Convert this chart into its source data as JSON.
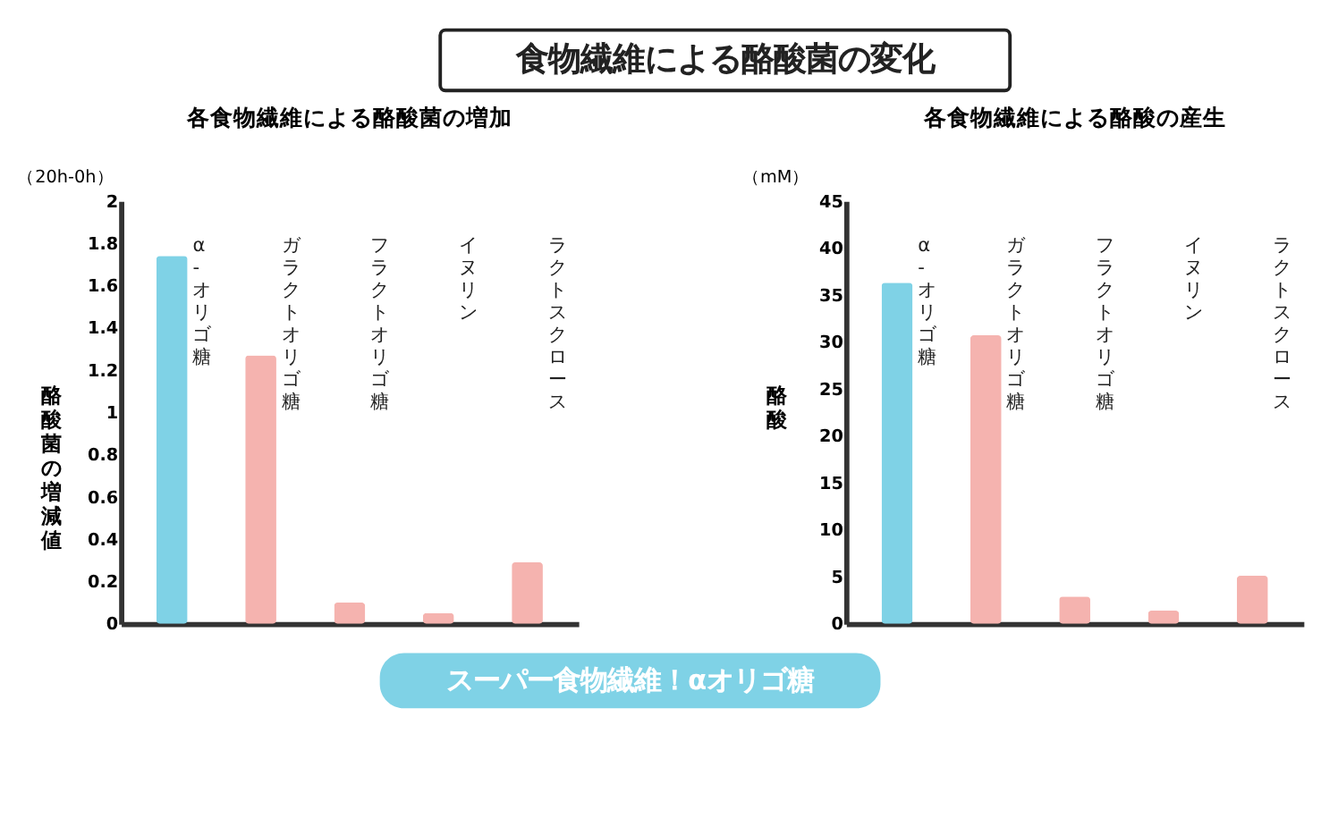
{
  "chart_data": [
    {
      "type": "other",
      "title": "食物繊維による酪酸菌の変化",
      "annotations": [
        "スーパー食物繊維！αオリゴ糖"
      ]
    },
    {
      "type": "bar",
      "title": "各食物繊維による酪酸菌の増加",
      "ylabel": "酪酸菌の増減値",
      "annotations": [
        "（20h-0h）"
      ],
      "categories": [
        "α-オリゴ糖",
        "ガラクトオリゴ糖",
        "フラクトオリゴ糖",
        "イヌリン",
        "ラクトスクロース"
      ],
      "values": [
        1.74,
        1.27,
        0.1,
        0.05,
        0.29
      ],
      "colors": [
        "#7fd2e6",
        "#f5b3af",
        "#f5b3af",
        "#f5b3af",
        "#f5b3af"
      ],
      "ylim": [
        0,
        2
      ],
      "yticks": [
        0,
        0.2,
        0.4,
        0.6,
        0.8,
        1,
        1.2,
        1.4,
        1.6,
        1.8,
        2
      ],
      "tick_labels": "y",
      "grid": false
    },
    {
      "type": "bar",
      "title": "各食物繊維による酪酸の産生",
      "ylabel": "酪酸",
      "annotations": [
        "（mM）"
      ],
      "categories": [
        "α-オリゴ糖",
        "ガラクトオリゴ糖",
        "フラクトオリゴ糖",
        "イヌリン",
        "ラクトスクロース"
      ],
      "values": [
        36.3,
        30.7,
        2.9,
        1.4,
        5.1
      ],
      "colors": [
        "#7fd2e6",
        "#f5b3af",
        "#f5b3af",
        "#f5b3af",
        "#f5b3af"
      ],
      "ylim": [
        0,
        45
      ],
      "yticks": [
        0,
        5,
        10,
        15,
        20,
        25,
        30,
        35,
        40,
        45
      ],
      "tick_labels": "y",
      "grid": false
    }
  ]
}
